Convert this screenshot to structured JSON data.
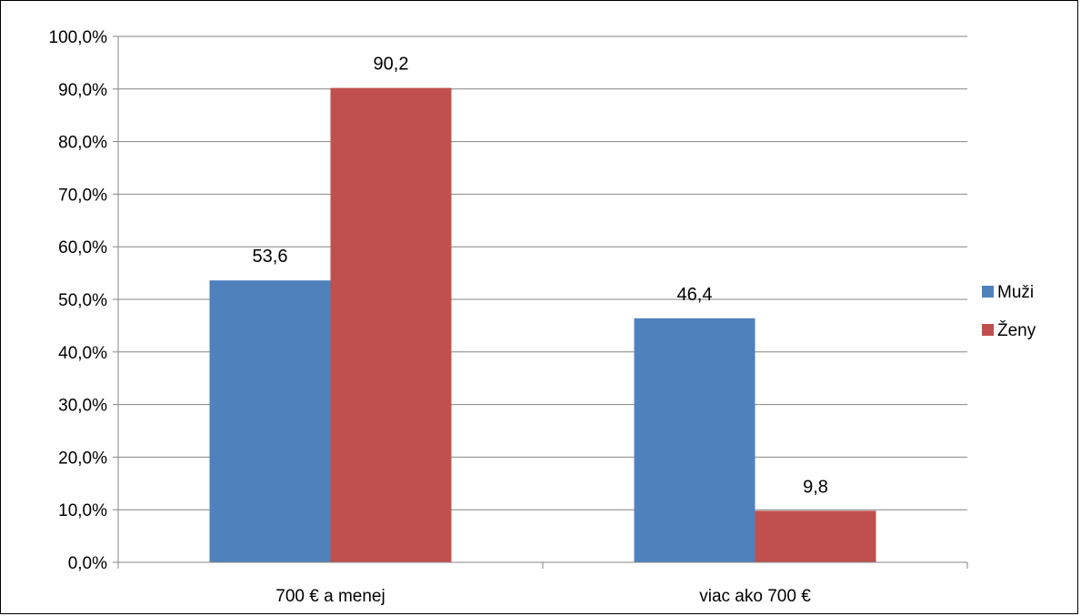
{
  "chart_data": {
    "type": "bar",
    "categories": [
      "700 € a menej",
      "viac ako 700 €"
    ],
    "series": [
      {
        "name": "Muži",
        "values": [
          53.6,
          46.4
        ],
        "color": "#4F81BD"
      },
      {
        "name": "Ženy",
        "values": [
          90.2,
          9.8
        ],
        "color": "#C0504D"
      }
    ],
    "data_labels": [
      [
        "53,6",
        "46,4"
      ],
      [
        "90,2",
        "9,8"
      ]
    ],
    "y_ticks": [
      "0,0%",
      "10,0%",
      "20,0%",
      "30,0%",
      "40,0%",
      "50,0%",
      "60,0%",
      "70,0%",
      "80,0%",
      "90,0%",
      "100,0%"
    ],
    "ylim": [
      0,
      100
    ],
    "grid": true,
    "legend": "right",
    "title": "",
    "xlabel": "",
    "ylabel": ""
  }
}
